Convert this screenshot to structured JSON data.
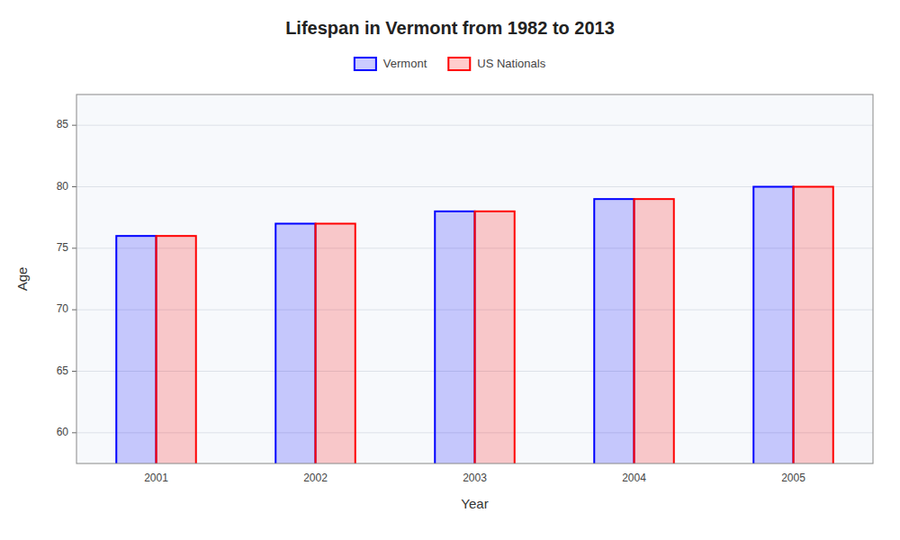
{
  "chart_data": {
    "type": "bar",
    "title": "Lifespan in Vermont from 1982 to 2013",
    "xlabel": "Year",
    "ylabel": "Age",
    "categories": [
      "2001",
      "2002",
      "2003",
      "2004",
      "2005"
    ],
    "series": [
      {
        "name": "Vermont",
        "color": "#0000ff",
        "values": [
          76.0,
          77.0,
          78.0,
          79.0,
          80.0
        ]
      },
      {
        "name": "US Nationals",
        "color": "#ff0000",
        "values": [
          76.0,
          77.0,
          78.0,
          79.0,
          80.0
        ]
      }
    ],
    "ylim": [
      57.5,
      87.5
    ],
    "yticks": [
      60,
      65,
      70,
      75,
      80,
      85
    ],
    "grid": true,
    "legend": "top"
  }
}
